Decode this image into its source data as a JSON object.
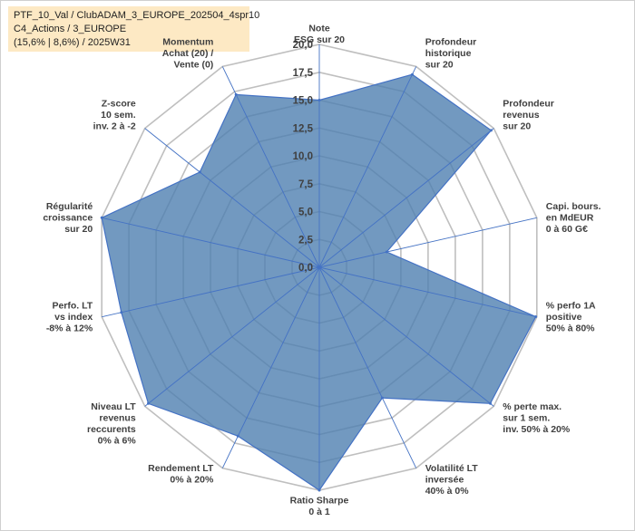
{
  "info_box": {
    "line1": "PTF_10_Val / ClubADAM_3_EUROPE_202504_4spr10",
    "line2": "C4_Actions / 3_EUROPE",
    "line3": "(15,6% | 8,6%) / 2025W31"
  },
  "colors": {
    "fill": "#4f7fb0",
    "outline": "#4472c4",
    "grid": "#bfbfbf",
    "spoke": "#4472c4",
    "info_bg": "#fde9c4"
  },
  "chart_data": {
    "type": "radar",
    "title": "",
    "rmax": 20,
    "ticks": [
      "0,0",
      "2,5",
      "5,0",
      "7,5",
      "10,0",
      "12,5",
      "15,0",
      "17,5",
      "20,0"
    ],
    "axes": [
      [
        "Note",
        "ESG sur 20"
      ],
      [
        "Profondeur",
        "historique",
        "sur 20"
      ],
      [
        "Profondeur",
        "revenus",
        "sur 20"
      ],
      [
        "Capi. bours.",
        "en MdEUR",
        "0 à 60 G€"
      ],
      [
        "% perfo 1A",
        "positive",
        "50% à 80%"
      ],
      [
        "% perte max.",
        "sur 1 sem.",
        "inv. 50% à 20%"
      ],
      [
        "Volatilité LT",
        "inversée",
        "40% à 0%"
      ],
      [
        "Ratio Sharpe",
        "0 à 1"
      ],
      [
        "Rendement LT",
        "0% à 20%"
      ],
      [
        "Niveau LT",
        "revenus",
        "reccurents",
        "0% à 6%"
      ],
      [
        "Perfo. LT",
        "vs index",
        "-8% à 12%"
      ],
      [
        "Régularité",
        "croissance",
        "sur 20"
      ],
      [
        "Z-score",
        "10 sem.",
        "inv. 2 à -2"
      ],
      [
        "Momentum",
        "Achat (20) /",
        "Vente (0)"
      ]
    ],
    "series": [
      {
        "values": [
          15.0,
          19.2,
          19.7,
          6.2,
          19.9,
          19.6,
          13.0,
          20.0,
          16.8,
          19.6,
          18.2,
          20.0,
          13.7,
          17.2
        ]
      }
    ]
  }
}
